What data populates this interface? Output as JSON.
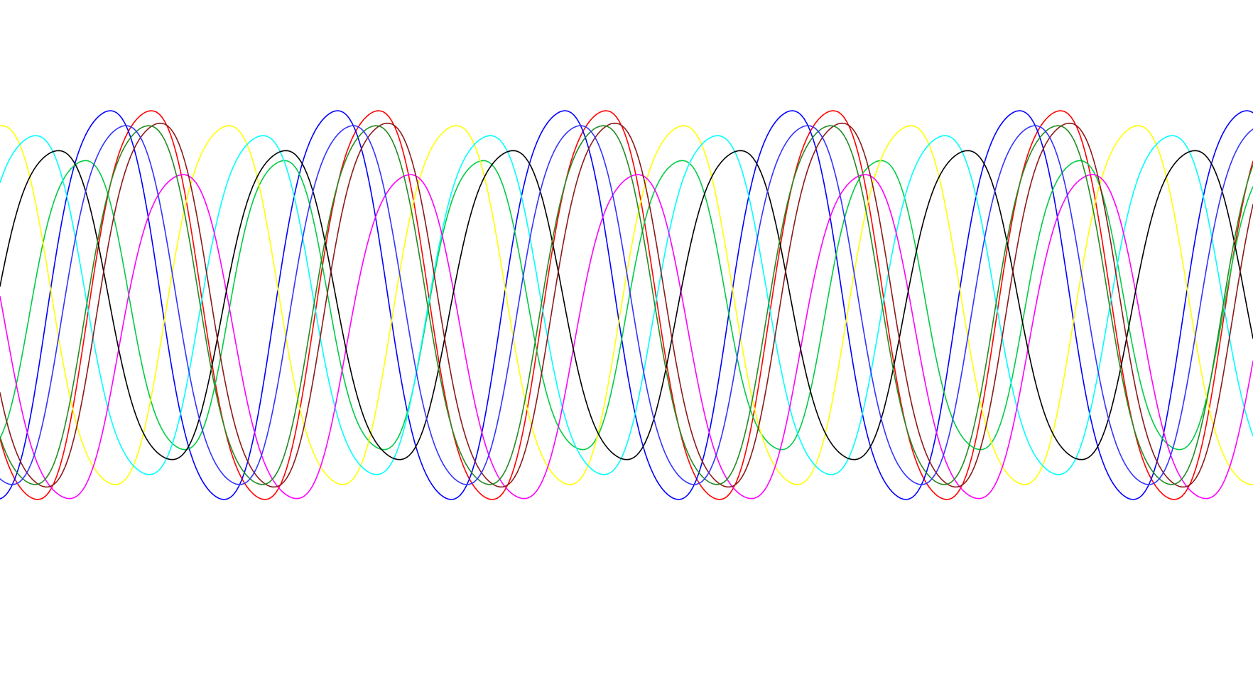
{
  "chart_data": {
    "type": "line",
    "title": "",
    "xlabel": "",
    "ylabel": "",
    "xlim": [
      0,
      1764
    ],
    "ylim": [
      -1,
      1
    ],
    "grid": false,
    "legend": "none",
    "series": [
      {
        "color": "#ff0000",
        "amplitude": 0.78,
        "period": 320,
        "phase": 3.8,
        "offset": 0.0
      },
      {
        "color": "#0000ff",
        "amplitude": 0.78,
        "period": 320,
        "phase": 4.93,
        "offset": 0.0
      },
      {
        "color": "#00cc44",
        "amplitude": 0.58,
        "period": 280,
        "phase": 5.28,
        "offset": 0.0
      },
      {
        "color": "#ffff00",
        "amplitude": 0.72,
        "period": 320,
        "phase": 1.65,
        "offset": 0.0
      },
      {
        "color": "#00ffff",
        "amplitude": 0.68,
        "period": 320,
        "phase": 0.71,
        "offset": 0.0
      },
      {
        "color": "#ff00ff",
        "amplitude": 0.65,
        "period": 320,
        "phase": 2.92,
        "offset": -0.12
      },
      {
        "color": "#000000",
        "amplitude": 0.62,
        "period": 320,
        "phase": 0.08,
        "offset": 0.0
      },
      {
        "color": "#8b1a1a",
        "amplitude": 0.73,
        "period": 320,
        "phase": 3.55,
        "offset": 0.0
      },
      {
        "color": "#228b22",
        "amplitude": 0.72,
        "period": 320,
        "phase": 3.87,
        "offset": 0.0
      },
      {
        "color": "#3333ff",
        "amplitude": 0.72,
        "period": 320,
        "phase": 4.5,
        "offset": 0.0
      }
    ]
  }
}
